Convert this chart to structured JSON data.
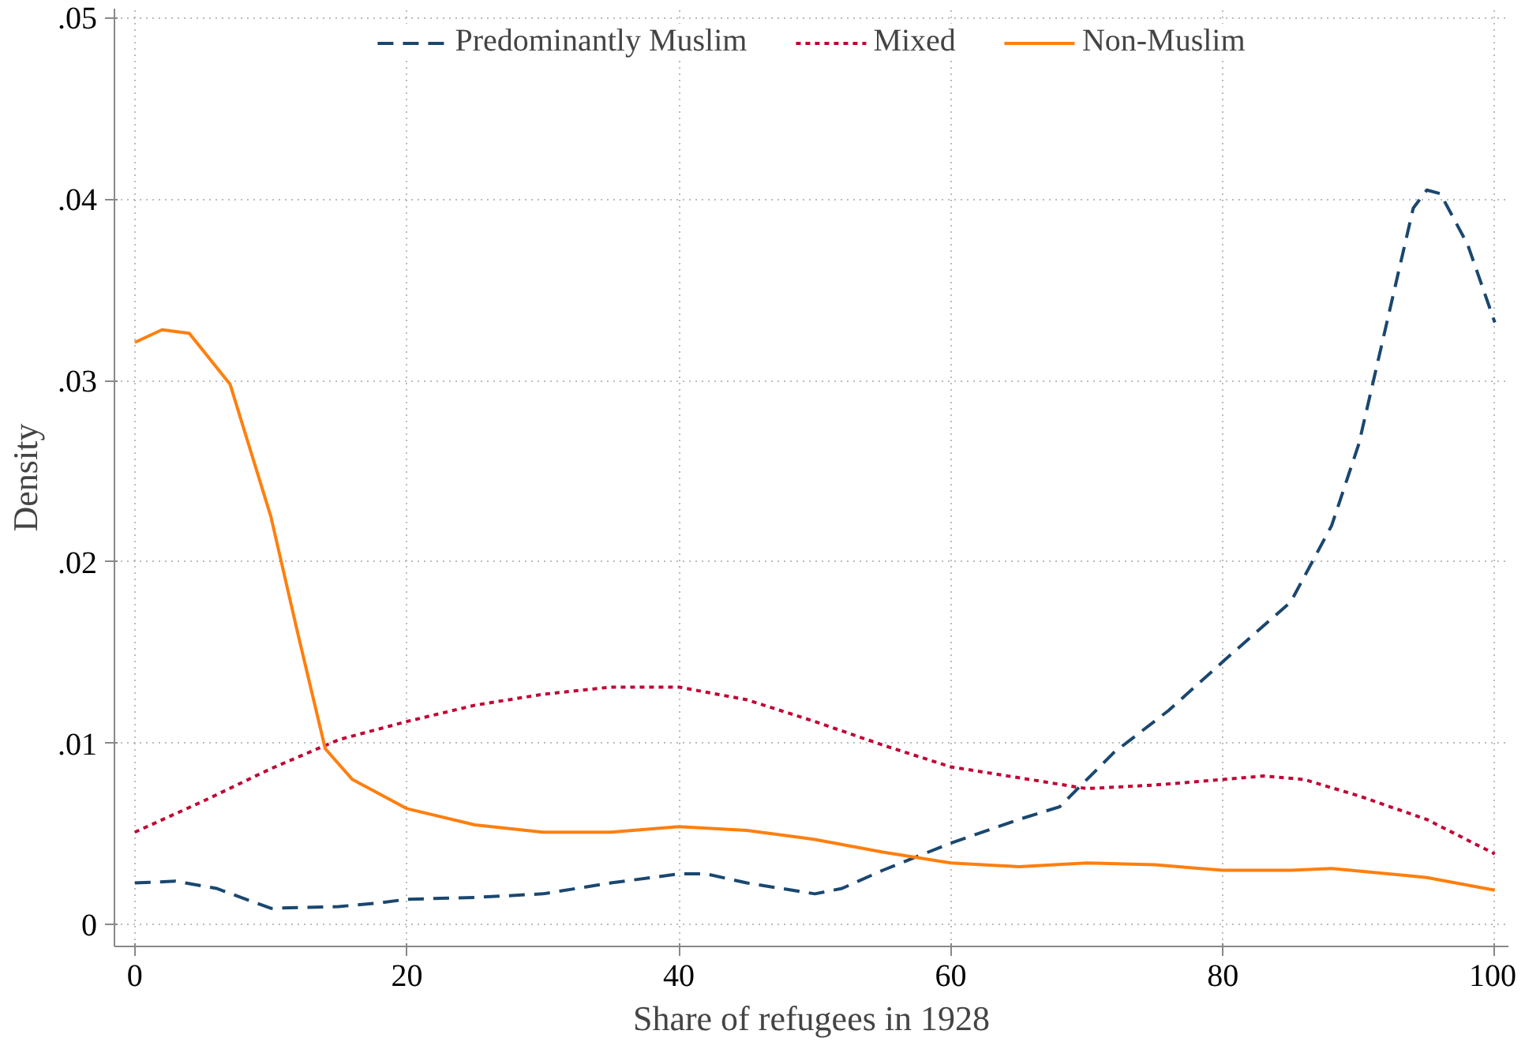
{
  "chart_data": {
    "type": "line",
    "xlabel": "Share of refugees in 1928",
    "ylabel": "Density",
    "xlim": [
      -1.5,
      101
    ],
    "ylim": [
      -0.0012,
      0.0505
    ],
    "xticks": [
      0,
      20,
      40,
      60,
      80,
      100
    ],
    "yticks": [
      {
        "value": 0,
        "label": "0"
      },
      {
        "value": 0.01,
        "label": ".01"
      },
      {
        "value": 0.02,
        "label": ".02"
      },
      {
        "value": 0.03,
        "label": ".03"
      },
      {
        "value": 0.04,
        "label": ".04"
      },
      {
        "value": 0.05,
        "label": ".05"
      }
    ],
    "grid": true,
    "legend": "top",
    "marker": "none",
    "series": [
      {
        "name": "Predominantly Muslim",
        "color": "#1a476f",
        "line_style": "dashed",
        "x": [
          0,
          3,
          6,
          10,
          15,
          18,
          20,
          25,
          30,
          35,
          40,
          42,
          45,
          50,
          52,
          55,
          60,
          65,
          68,
          72,
          76,
          80,
          85,
          88,
          90,
          92,
          94,
          95,
          96,
          98,
          100
        ],
        "values": [
          0.0023,
          0.0024,
          0.002,
          0.0009,
          0.001,
          0.0012,
          0.0014,
          0.0015,
          0.0017,
          0.0023,
          0.0028,
          0.0028,
          0.0023,
          0.0017,
          0.002,
          0.003,
          0.0045,
          0.0058,
          0.0065,
          0.0095,
          0.0118,
          0.0145,
          0.0178,
          0.022,
          0.0265,
          0.033,
          0.0395,
          0.0405,
          0.0403,
          0.0375,
          0.0332
        ]
      },
      {
        "name": "Mixed",
        "color": "#c10534",
        "line_style": "dotted",
        "x": [
          0,
          5,
          10,
          15,
          20,
          25,
          30,
          35,
          40,
          45,
          50,
          55,
          60,
          65,
          70,
          75,
          80,
          83,
          86,
          90,
          95,
          100
        ],
        "values": [
          0.0051,
          0.0068,
          0.0086,
          0.0102,
          0.0112,
          0.0121,
          0.0127,
          0.0131,
          0.0131,
          0.0124,
          0.0112,
          0.0099,
          0.0087,
          0.0081,
          0.0075,
          0.0077,
          0.008,
          0.0082,
          0.008,
          0.0071,
          0.0058,
          0.0039
        ]
      },
      {
        "name": "Non-Muslim",
        "color": "#ff7f0e",
        "line_style": "solid",
        "x": [
          0,
          2,
          4,
          7,
          10,
          12,
          14,
          16,
          20,
          25,
          30,
          35,
          40,
          45,
          50,
          55,
          60,
          65,
          70,
          75,
          80,
          85,
          88,
          95,
          100
        ],
        "values": [
          0.0321,
          0.0328,
          0.0326,
          0.0298,
          0.0225,
          0.016,
          0.0097,
          0.008,
          0.0064,
          0.0055,
          0.0051,
          0.0051,
          0.0054,
          0.0052,
          0.0047,
          0.004,
          0.0034,
          0.0032,
          0.0034,
          0.0033,
          0.003,
          0.003,
          0.0031,
          0.0026,
          0.0019
        ]
      }
    ]
  }
}
